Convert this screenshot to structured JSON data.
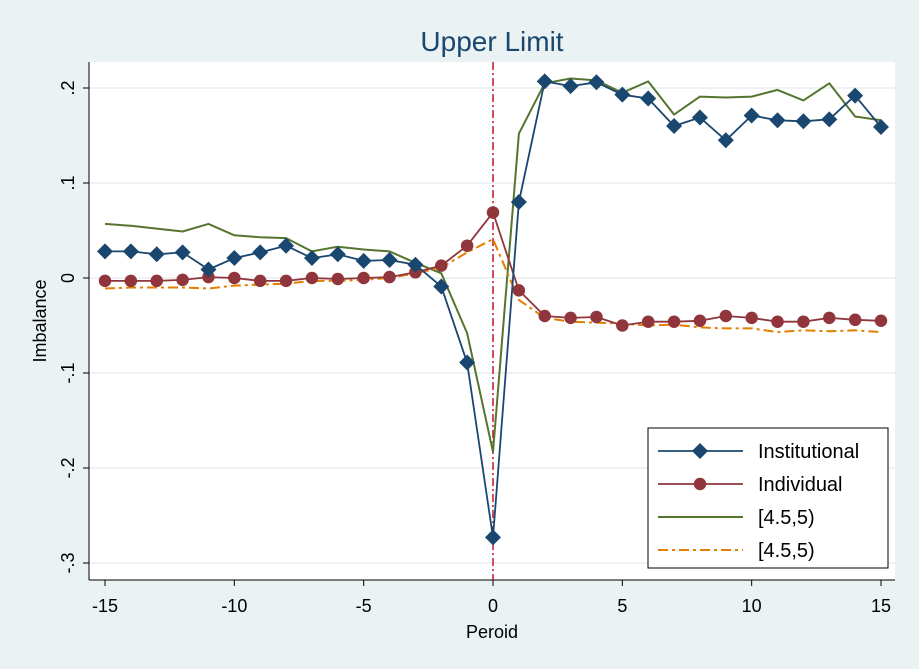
{
  "chart_data": {
    "type": "line",
    "title": "Upper Limit",
    "xlabel": "Peroid",
    "ylabel": "Imbalance",
    "xlim": [
      -15,
      15
    ],
    "ylim": [
      -0.3,
      0.2
    ],
    "x_ticks": [
      -15,
      -10,
      -5,
      0,
      5,
      10,
      15
    ],
    "x_tick_labels": [
      "-15",
      "-10",
      "-5",
      "0",
      "5",
      "10",
      "15"
    ],
    "y_ticks": [
      -0.3,
      -0.2,
      -0.1,
      0,
      0.1,
      0.2
    ],
    "y_tick_labels": [
      "-.3",
      "-.2",
      "-.1",
      "0",
      ".1",
      ".2"
    ],
    "grid": true,
    "legend_position": "bottom-right",
    "reference_line": {
      "axis": "x",
      "value": 0,
      "color": "#c8102e",
      "style": "dash-dot"
    },
    "x": [
      -15,
      -14,
      -13,
      -12,
      -11,
      -10,
      -9,
      -8,
      -7,
      -6,
      -5,
      -4,
      -3,
      -2,
      -1,
      0,
      1,
      2,
      3,
      4,
      5,
      6,
      7,
      8,
      9,
      10,
      11,
      12,
      13,
      14,
      15
    ],
    "series": [
      {
        "name": "Institutional",
        "color": "#1a476f",
        "marker": "diamond",
        "line_style": "solid",
        "values": [
          0.028,
          0.028,
          0.025,
          0.027,
          0.009,
          0.021,
          0.027,
          0.034,
          0.021,
          0.025,
          0.018,
          0.019,
          0.014,
          -0.009,
          -0.089,
          -0.273,
          0.08,
          0.207,
          0.202,
          0.206,
          0.193,
          0.189,
          0.16,
          0.169,
          0.145,
          0.171,
          0.166,
          0.165,
          0.167,
          0.192,
          0.159
        ]
      },
      {
        "name": "Individual",
        "color": "#90353b",
        "marker": "circle",
        "line_style": "solid",
        "values": [
          -0.003,
          -0.003,
          -0.003,
          -0.002,
          0.001,
          0.0,
          -0.003,
          -0.003,
          0.0,
          -0.001,
          0.0,
          0.001,
          0.006,
          0.013,
          0.034,
          0.069,
          -0.013,
          -0.04,
          -0.042,
          -0.041,
          -0.05,
          -0.046,
          -0.046,
          -0.045,
          -0.04,
          -0.042,
          -0.046,
          -0.046,
          -0.042,
          -0.044,
          -0.045
        ]
      },
      {
        "name": "[4.5,5)",
        "color": "#55752f",
        "marker": "none",
        "line_style": "solid",
        "values": [
          0.057,
          0.055,
          0.052,
          0.049,
          0.057,
          0.045,
          0.043,
          0.042,
          0.028,
          0.033,
          0.03,
          0.028,
          0.016,
          0.005,
          -0.058,
          -0.183,
          0.152,
          0.205,
          0.21,
          0.208,
          0.195,
          0.207,
          0.172,
          0.191,
          0.19,
          0.191,
          0.198,
          0.187,
          0.205,
          0.17,
          0.166
        ]
      },
      {
        "name": "[4.5,5)",
        "color": "#e37e00",
        "marker": "none",
        "line_style": "dash-dot",
        "values": [
          -0.011,
          -0.01,
          -0.01,
          -0.01,
          -0.011,
          -0.008,
          -0.007,
          -0.006,
          -0.003,
          -0.003,
          -0.002,
          0.0,
          0.005,
          0.011,
          0.027,
          0.041,
          -0.023,
          -0.042,
          -0.046,
          -0.047,
          -0.048,
          -0.05,
          -0.049,
          -0.052,
          -0.053,
          -0.053,
          -0.057,
          -0.055,
          -0.056,
          -0.055,
          -0.057
        ]
      }
    ]
  }
}
